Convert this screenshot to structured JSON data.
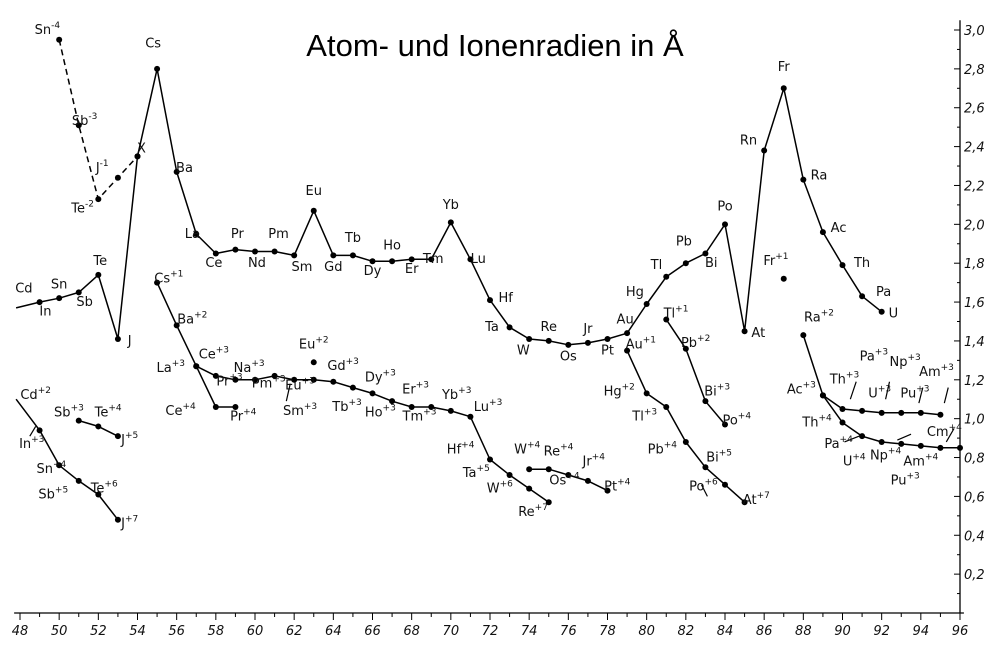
{
  "chart_data": {
    "type": "line",
    "title": "Atom- und Ionenradien in Å",
    "x_ticks": [
      "48",
      "50",
      "52",
      "54",
      "56",
      "58",
      "60",
      "62",
      "64",
      "66",
      "68",
      "70",
      "72",
      "74",
      "76",
      "78",
      "80",
      "82",
      "84",
      "86",
      "88",
      "90",
      "92",
      "94",
      "96"
    ],
    "y_ticks": [
      "0,2",
      "0,4",
      "0,6",
      "0,8",
      "1,0",
      "1,2",
      "1,4",
      "1,6",
      "1,8",
      "2,0",
      "2,2",
      "2,4",
      "2,6",
      "2,8",
      "3,0"
    ],
    "xlim": [
      47.7,
      96.2
    ],
    "ylim": [
      0,
      3.05
    ],
    "series": [
      {
        "dashed": false,
        "points": [
          [
            47.8,
            1.57
          ],
          [
            49,
            1.6
          ],
          [
            50,
            1.62
          ],
          [
            51,
            1.65
          ],
          [
            52,
            1.74
          ],
          [
            53,
            1.41
          ],
          [
            54,
            2.35
          ],
          [
            55,
            2.8
          ],
          [
            56,
            2.27
          ],
          [
            57,
            1.95
          ],
          [
            58,
            1.85
          ],
          [
            59,
            1.87
          ],
          [
            60,
            1.86
          ],
          [
            61,
            1.86
          ],
          [
            62,
            1.84
          ],
          [
            63,
            2.07
          ],
          [
            64,
            1.84
          ],
          [
            65,
            1.84
          ],
          [
            66,
            1.81
          ],
          [
            67,
            1.81
          ],
          [
            68,
            1.82
          ],
          [
            69,
            1.82
          ],
          [
            70,
            2.01
          ],
          [
            71,
            1.82
          ],
          [
            72,
            1.61
          ],
          [
            73,
            1.47
          ],
          [
            74,
            1.41
          ],
          [
            75,
            1.4
          ],
          [
            76,
            1.38
          ],
          [
            77,
            1.39
          ],
          [
            78,
            1.41
          ],
          [
            79,
            1.44
          ],
          [
            80,
            1.59
          ],
          [
            81,
            1.73
          ],
          [
            82,
            1.8
          ],
          [
            83,
            1.85
          ],
          [
            84,
            2.0
          ],
          [
            85,
            1.45
          ],
          [
            86,
            2.38
          ],
          [
            87,
            2.7
          ],
          [
            88,
            2.23
          ],
          [
            89,
            1.96
          ],
          [
            90,
            1.79
          ],
          [
            91,
            1.63
          ],
          [
            92,
            1.55
          ]
        ]
      },
      {
        "dashed": true,
        "points": [
          [
            50,
            2.95
          ],
          [
            51,
            2.51
          ],
          [
            52,
            2.13
          ],
          [
            53,
            2.24
          ],
          [
            54,
            2.35
          ]
        ]
      },
      {
        "dashed": false,
        "points": [
          [
            55,
            1.7
          ],
          [
            56,
            1.48
          ],
          [
            57,
            1.27
          ],
          [
            58,
            1.22
          ],
          [
            59,
            1.2
          ],
          [
            60,
            1.2
          ],
          [
            61,
            1.22
          ],
          [
            62,
            1.2
          ],
          [
            63,
            1.2
          ],
          [
            64,
            1.19
          ],
          [
            65,
            1.16
          ],
          [
            66,
            1.13
          ],
          [
            67,
            1.09
          ],
          [
            68,
            1.06
          ],
          [
            69,
            1.06
          ],
          [
            70,
            1.04
          ],
          [
            71,
            1.01
          ],
          [
            72,
            0.79
          ],
          [
            73,
            0.71
          ],
          [
            74,
            0.64
          ],
          [
            75,
            0.57
          ]
        ]
      },
      {
        "dashed": false,
        "points": [
          [
            57,
            1.27
          ],
          [
            58,
            1.06
          ],
          [
            59,
            1.06
          ]
        ]
      },
      {
        "dashed": false,
        "points": [
          [
            74,
            0.74
          ],
          [
            75,
            0.74
          ],
          [
            76,
            0.71
          ],
          [
            77,
            0.68
          ],
          [
            78,
            0.63
          ]
        ]
      },
      {
        "dashed": false,
        "points": [
          [
            47.8,
            1.1
          ],
          [
            49,
            0.94
          ],
          [
            50,
            0.76
          ],
          [
            51,
            0.68
          ],
          [
            52,
            0.61
          ],
          [
            53,
            0.48
          ]
        ]
      },
      {
        "dashed": false,
        "points": [
          [
            51,
            0.99
          ],
          [
            52,
            0.96
          ],
          [
            53,
            0.91
          ]
        ]
      },
      {
        "dashed": false,
        "points": [
          [
            79,
            1.35
          ],
          [
            80,
            1.13
          ],
          [
            81,
            1.06
          ],
          [
            82,
            0.88
          ],
          [
            83,
            0.75
          ],
          [
            84,
            0.66
          ],
          [
            85,
            0.57
          ]
        ]
      },
      {
        "dashed": false,
        "points": [
          [
            81,
            1.51
          ],
          [
            82,
            1.36
          ],
          [
            83,
            1.09
          ],
          [
            84,
            0.97
          ]
        ]
      },
      {
        "dashed": false,
        "points": [
          [
            88,
            1.43
          ],
          [
            89,
            1.12
          ],
          [
            90,
            1.05
          ],
          [
            91,
            1.04
          ],
          [
            92,
            1.03
          ],
          [
            93,
            1.03
          ],
          [
            94,
            1.03
          ],
          [
            95,
            1.02
          ]
        ]
      },
      {
        "dashed": false,
        "points": [
          [
            89,
            1.12
          ],
          [
            90,
            0.98
          ],
          [
            91,
            0.91
          ],
          [
            92,
            0.88
          ],
          [
            93,
            0.87
          ],
          [
            94,
            0.86
          ],
          [
            95,
            0.85
          ],
          [
            96,
            0.85
          ]
        ]
      }
    ],
    "isolated_points": [
      [
        63,
        1.29
      ],
      [
        87,
        1.72
      ]
    ],
    "labels": [
      {
        "t": "Sn",
        "s": "-4",
        "x": 49.4,
        "y": 2.98
      },
      {
        "t": "Sb",
        "s": "-3",
        "x": 51.3,
        "y": 2.51
      },
      {
        "t": "J",
        "s": "-1",
        "x": 52.2,
        "y": 2.27
      },
      {
        "t": "X",
        "s": "",
        "x": 54.2,
        "y": 2.37
      },
      {
        "t": "Te",
        "s": "-2",
        "x": 51.2,
        "y": 2.06
      },
      {
        "t": "Cs",
        "s": "",
        "x": 54.8,
        "y": 2.91
      },
      {
        "t": "Ba",
        "s": "",
        "x": 56.4,
        "y": 2.27
      },
      {
        "t": "La",
        "s": "",
        "x": 56.8,
        "y": 1.93
      },
      {
        "t": "Ce",
        "s": "",
        "x": 57.9,
        "y": 1.78
      },
      {
        "t": "Pr",
        "s": "",
        "x": 59.1,
        "y": 1.93
      },
      {
        "t": "Nd",
        "s": "",
        "x": 60.1,
        "y": 1.78
      },
      {
        "t": "Pm",
        "s": "",
        "x": 61.2,
        "y": 1.93
      },
      {
        "t": "Sm",
        "s": "",
        "x": 62.4,
        "y": 1.76
      },
      {
        "t": "Eu",
        "s": "",
        "x": 63,
        "y": 2.15
      },
      {
        "t": "Gd",
        "s": "",
        "x": 64,
        "y": 1.76
      },
      {
        "t": "Tb",
        "s": "",
        "x": 65,
        "y": 1.91
      },
      {
        "t": "Dy",
        "s": "",
        "x": 66,
        "y": 1.74
      },
      {
        "t": "Ho",
        "s": "",
        "x": 67,
        "y": 1.87
      },
      {
        "t": "Er",
        "s": "",
        "x": 68,
        "y": 1.75
      },
      {
        "t": "Tm",
        "s": "",
        "x": 69.1,
        "y": 1.8
      },
      {
        "t": "Yb",
        "s": "",
        "x": 70,
        "y": 2.08
      },
      {
        "t": "Lu",
        "s": "",
        "x": 71.4,
        "y": 1.8
      },
      {
        "t": "Hf",
        "s": "",
        "x": 72.8,
        "y": 1.6
      },
      {
        "t": "Ta",
        "s": "",
        "x": 72.1,
        "y": 1.45
      },
      {
        "t": "W",
        "s": "",
        "x": 73.7,
        "y": 1.33
      },
      {
        "t": "Re",
        "s": "",
        "x": 75,
        "y": 1.45
      },
      {
        "t": "Os",
        "s": "",
        "x": 76,
        "y": 1.3
      },
      {
        "t": "Jr",
        "s": "",
        "x": 77,
        "y": 1.44
      },
      {
        "t": "Pt",
        "s": "",
        "x": 78,
        "y": 1.33
      },
      {
        "t": "Au",
        "s": "",
        "x": 78.9,
        "y": 1.49
      },
      {
        "t": "Hg",
        "s": "",
        "x": 79.4,
        "y": 1.63
      },
      {
        "t": "Tl",
        "s": "",
        "x": 80.5,
        "y": 1.77
      },
      {
        "t": "Pb",
        "s": "",
        "x": 81.9,
        "y": 1.89
      },
      {
        "t": "Bi",
        "s": "",
        "x": 83.3,
        "y": 1.78
      },
      {
        "t": "Po",
        "s": "",
        "x": 84,
        "y": 2.07
      },
      {
        "t": "At",
        "s": "",
        "x": 85.7,
        "y": 1.42
      },
      {
        "t": "Rn",
        "s": "",
        "x": 85.2,
        "y": 2.41
      },
      {
        "t": "Fr",
        "s": "",
        "x": 87,
        "y": 2.79
      },
      {
        "t": "Ra",
        "s": "",
        "x": 88.8,
        "y": 2.23
      },
      {
        "t": "Ac",
        "s": "",
        "x": 89.8,
        "y": 1.96
      },
      {
        "t": "Th",
        "s": "",
        "x": 91,
        "y": 1.78
      },
      {
        "t": "Pa",
        "s": "",
        "x": 92.1,
        "y": 1.63
      },
      {
        "t": "U",
        "s": "",
        "x": 92.6,
        "y": 1.52
      },
      {
        "t": "Fr",
        "s": "+1",
        "x": 86.6,
        "y": 1.79
      },
      {
        "t": "Cd",
        "s": "",
        "x": 48.2,
        "y": 1.65
      },
      {
        "t": "In",
        "s": "",
        "x": 49.3,
        "y": 1.53
      },
      {
        "t": "Sn",
        "s": "",
        "x": 50,
        "y": 1.67
      },
      {
        "t": "Sb",
        "s": "",
        "x": 51.3,
        "y": 1.58
      },
      {
        "t": "Te",
        "s": "",
        "x": 52.1,
        "y": 1.79
      },
      {
        "t": "J",
        "s": "",
        "x": 53.6,
        "y": 1.38
      },
      {
        "t": "Cs",
        "s": "+1",
        "x": 55.6,
        "y": 1.7
      },
      {
        "t": "Ba",
        "s": "+2",
        "x": 56.8,
        "y": 1.49
      },
      {
        "t": "La",
        "s": "+3",
        "x": 55.7,
        "y": 1.24
      },
      {
        "t": "Ce",
        "s": "+3",
        "x": 57.9,
        "y": 1.31
      },
      {
        "t": "Na",
        "s": "+3",
        "x": 59.7,
        "y": 1.24
      },
      {
        "t": "Pr",
        "s": "+3",
        "x": 58.7,
        "y": 1.17
      },
      {
        "t": "Pm",
        "s": "+3",
        "x": 60.7,
        "y": 1.16
      },
      {
        "t": "Eu",
        "s": "+3",
        "x": 62.3,
        "y": 1.15
      },
      {
        "t": "Eu",
        "s": "+2",
        "x": 63,
        "y": 1.36
      },
      {
        "t": "Gd",
        "s": "+3",
        "x": 64.5,
        "y": 1.25
      },
      {
        "t": "Dy",
        "s": "+3",
        "x": 66.4,
        "y": 1.19
      },
      {
        "t": "Er",
        "s": "+3",
        "x": 68.2,
        "y": 1.13
      },
      {
        "t": "Yb",
        "s": "+3",
        "x": 70.3,
        "y": 1.1
      },
      {
        "t": "Lu",
        "s": "+3",
        "x": 71.9,
        "y": 1.04
      },
      {
        "t": "Ce",
        "s": "+4",
        "x": 56.2,
        "y": 1.02
      },
      {
        "t": "Pr",
        "s": "+4",
        "x": 59.4,
        "y": 0.99
      },
      {
        "t": "Sm",
        "s": "+3",
        "x": 62.3,
        "y": 1.02
      },
      {
        "t": "Tb",
        "s": "+3",
        "x": 64.7,
        "y": 1.04
      },
      {
        "t": "Ho",
        "s": "+3",
        "x": 66.4,
        "y": 1.01
      },
      {
        "t": "Tm",
        "s": "+3",
        "x": 68.4,
        "y": 0.99
      },
      {
        "t": "Hf",
        "s": "+4",
        "x": 70.5,
        "y": 0.82
      },
      {
        "t": "Ta",
        "s": "+5",
        "x": 71.3,
        "y": 0.7
      },
      {
        "t": "W",
        "s": "+6",
        "x": 72.5,
        "y": 0.62
      },
      {
        "t": "Re",
        "s": "+7",
        "x": 74.2,
        "y": 0.5
      },
      {
        "t": "W",
        "s": "+4",
        "x": 73.9,
        "y": 0.82
      },
      {
        "t": "Re",
        "s": "+4",
        "x": 75.5,
        "y": 0.81
      },
      {
        "t": "Os",
        "s": "+4",
        "x": 75.8,
        "y": 0.66
      },
      {
        "t": "Jr",
        "s": "+4",
        "x": 77.3,
        "y": 0.76
      },
      {
        "t": "Pt",
        "s": "+4",
        "x": 78.5,
        "y": 0.63
      },
      {
        "t": "Au",
        "s": "+1",
        "x": 79.7,
        "y": 1.36
      },
      {
        "t": "Tl",
        "s": "+1",
        "x": 81.5,
        "y": 1.52
      },
      {
        "t": "Pb",
        "s": "+2",
        "x": 82.5,
        "y": 1.37
      },
      {
        "t": "Hg",
        "s": "+2",
        "x": 78.6,
        "y": 1.12
      },
      {
        "t": "Tl",
        "s": "+3",
        "x": 79.9,
        "y": 0.99
      },
      {
        "t": "Bi",
        "s": "+3",
        "x": 83.6,
        "y": 1.12
      },
      {
        "t": "Po",
        "s": "+4",
        "x": 84.6,
        "y": 0.97
      },
      {
        "t": "Pb",
        "s": "+4",
        "x": 80.8,
        "y": 0.82
      },
      {
        "t": "Bi",
        "s": "+5",
        "x": 83.7,
        "y": 0.78
      },
      {
        "t": "Po",
        "s": "+6",
        "x": 82.9,
        "y": 0.63
      },
      {
        "t": "At",
        "s": "+7",
        "x": 85.6,
        "y": 0.56
      },
      {
        "t": "Ra",
        "s": "+2",
        "x": 88.8,
        "y": 1.5
      },
      {
        "t": "Ac",
        "s": "+3",
        "x": 87.9,
        "y": 1.13
      },
      {
        "t": "Th",
        "s": "+3",
        "x": 90.1,
        "y": 1.18
      },
      {
        "t": "Pa",
        "s": "+3",
        "x": 91.6,
        "y": 1.3
      },
      {
        "t": "Np",
        "s": "+3",
        "x": 93.2,
        "y": 1.27
      },
      {
        "t": "Am",
        "s": "+3",
        "x": 94.8,
        "y": 1.22
      },
      {
        "t": "U",
        "s": "+3",
        "x": 91.9,
        "y": 1.11
      },
      {
        "t": "Pu",
        "s": "+3",
        "x": 93.7,
        "y": 1.11
      },
      {
        "t": "Th",
        "s": "+4",
        "x": 88.7,
        "y": 0.96
      },
      {
        "t": "Pa",
        "s": "+4",
        "x": 89.8,
        "y": 0.85
      },
      {
        "t": "U",
        "s": "+4",
        "x": 90.6,
        "y": 0.76
      },
      {
        "t": "Np",
        "s": "+4",
        "x": 92.2,
        "y": 0.79
      },
      {
        "t": "Am",
        "s": "+4",
        "x": 94,
        "y": 0.76
      },
      {
        "t": "Pu",
        "s": "+3",
        "x": 93.2,
        "y": 0.66
      },
      {
        "t": "Cm",
        "s": "+4",
        "x": 95.2,
        "y": 0.91
      },
      {
        "t": "Cd",
        "s": "+2",
        "x": 48.8,
        "y": 1.1
      },
      {
        "t": "In",
        "s": "+3",
        "x": 48.6,
        "y": 0.85
      },
      {
        "t": "Sn",
        "s": "+4",
        "x": 49.6,
        "y": 0.72
      },
      {
        "t": "Sb",
        "s": "+5",
        "x": 49.7,
        "y": 0.59
      },
      {
        "t": "Te",
        "s": "+6",
        "x": 52.3,
        "y": 0.62
      },
      {
        "t": "Sb",
        "s": "+3",
        "x": 50.5,
        "y": 1.01
      },
      {
        "t": "Te",
        "s": "+4",
        "x": 52.5,
        "y": 1.01
      },
      {
        "t": "J",
        "s": "+5",
        "x": 53.6,
        "y": 0.87
      },
      {
        "t": "J",
        "s": "+7",
        "x": 53.6,
        "y": 0.44
      }
    ],
    "strokes": [
      [
        48.8,
        0.96,
        48.5,
        0.91
      ],
      [
        61.8,
        1.18,
        61.6,
        1.09
      ],
      [
        90.7,
        1.19,
        90.4,
        1.1
      ],
      [
        92.4,
        1.19,
        92.2,
        1.1
      ],
      [
        94.1,
        1.16,
        93.9,
        1.08
      ],
      [
        95.4,
        1.16,
        95.2,
        1.08
      ],
      [
        90.1,
        0.88,
        91.1,
        0.92
      ],
      [
        92.8,
        0.89,
        93.5,
        0.92
      ],
      [
        95.3,
        0.88,
        95.7,
        0.95
      ],
      [
        83.1,
        0.6,
        82.8,
        0.66
      ]
    ]
  }
}
